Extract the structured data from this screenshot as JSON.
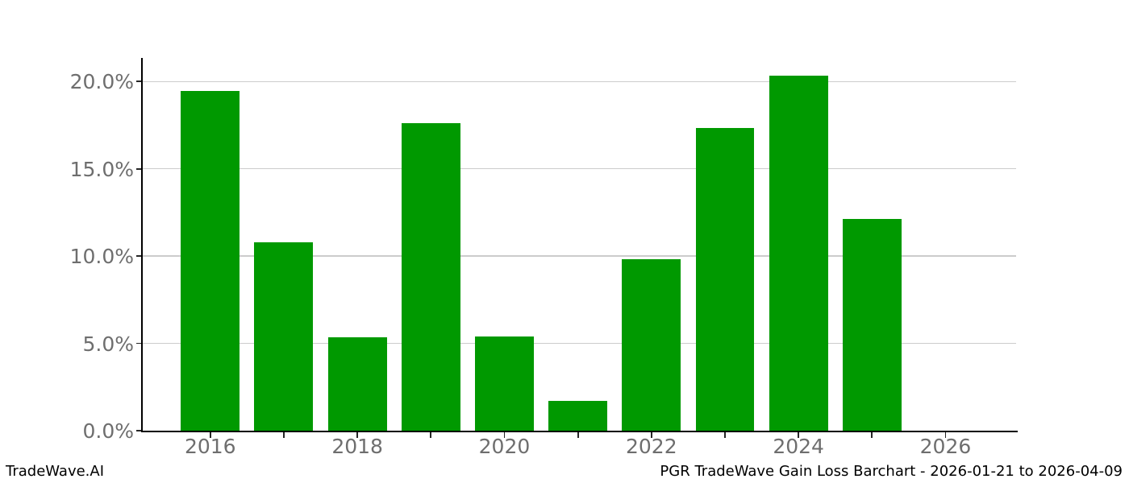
{
  "chart_data": {
    "type": "bar",
    "title": "PGR TradeWave Gain Loss Barchart - 2026-01-21 to 2026-04-09",
    "categories": [
      "2016",
      "2017",
      "2018",
      "2019",
      "2020",
      "2021",
      "2022",
      "2023",
      "2024",
      "2025"
    ],
    "values": [
      19.45,
      10.8,
      5.35,
      17.6,
      5.4,
      1.7,
      9.8,
      17.35,
      20.35,
      12.15
    ],
    "xlabel": "",
    "ylabel": "",
    "bar_color": "#009900",
    "bar_width_data_units": 0.8,
    "xticks": [
      {
        "year": 2016,
        "label": "2016"
      },
      {
        "year": 2017,
        "label": ""
      },
      {
        "year": 2018,
        "label": "2018"
      },
      {
        "year": 2019,
        "label": ""
      },
      {
        "year": 2020,
        "label": "2020"
      },
      {
        "year": 2021,
        "label": ""
      },
      {
        "year": 2022,
        "label": "2022"
      },
      {
        "year": 2023,
        "label": ""
      },
      {
        "year": 2024,
        "label": "2024"
      },
      {
        "year": 2025,
        "label": ""
      },
      {
        "year": 2026,
        "label": "2026"
      }
    ],
    "yticks": [
      0,
      5,
      10,
      15,
      20
    ],
    "ytick_format": "one_decimal_percent",
    "xlim": [
      2015.07,
      2026.96
    ],
    "ylim": [
      0,
      21.35
    ],
    "grid": "horizontal",
    "legend": "none",
    "colors": {
      "grid": "#cccccc",
      "spine": "#000000",
      "tick": "#262626",
      "tick_label": "#6e6e6e",
      "footer_text": "#000000",
      "background": "#ffffff"
    }
  },
  "footer": {
    "left": "TradeWave.AI",
    "right": "PGR TradeWave Gain Loss Barchart - 2026-01-21 to 2026-04-09"
  }
}
